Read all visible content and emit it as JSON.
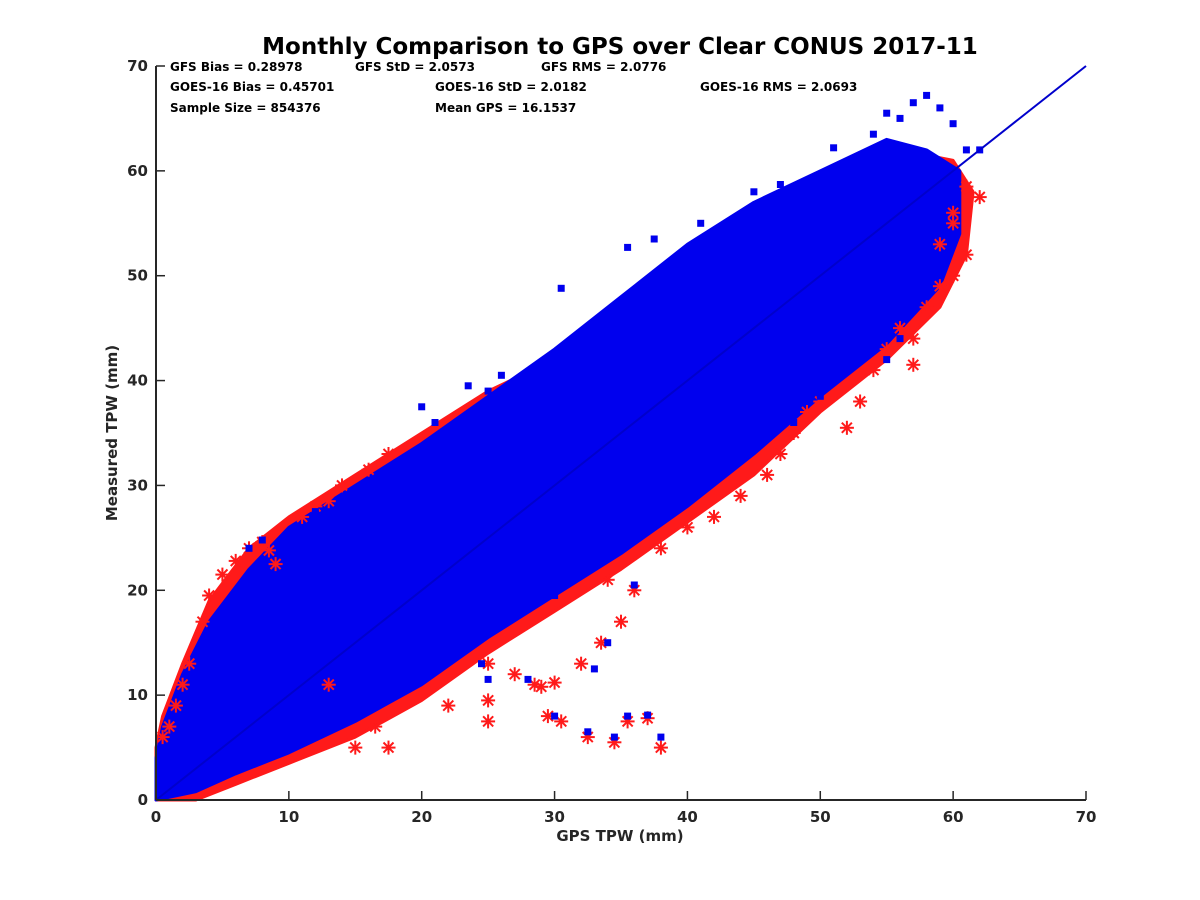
{
  "chart_data": {
    "type": "scatter",
    "title": "Monthly Comparison to GPS over Clear CONUS 2017-11",
    "xlabel": "GPS TPW (mm)",
    "ylabel": "Measured TPW (mm)",
    "xlim": [
      0,
      70
    ],
    "ylim": [
      0,
      70
    ],
    "xticks": [
      "0",
      "10",
      "20",
      "30",
      "40",
      "50",
      "60",
      "70"
    ],
    "yticks": [
      "0",
      "10",
      "20",
      "30",
      "40",
      "50",
      "60",
      "70"
    ],
    "grid": false,
    "legend": "none",
    "stats": {
      "row1": [
        "GFS Bias = 0.28978",
        "GFS StD = 2.0573",
        "GFS RMS = 2.0776"
      ],
      "row2": [
        "GOES-16 Bias = 0.45701",
        "GOES-16 StD = 2.0182",
        "GOES-16 RMS = 2.0693"
      ],
      "row3": [
        "Sample Size = 854376",
        "Mean GPS = 16.1537"
      ]
    },
    "reference_line": {
      "x": [
        0,
        70
      ],
      "y": [
        0,
        70
      ],
      "color": "#0000cc"
    },
    "series": [
      {
        "marker": "asterisk",
        "color": "#ff1a1a",
        "outliers": [
          [
            5,
            21.5
          ],
          [
            6,
            22.8
          ],
          [
            7,
            24
          ],
          [
            8,
            24.6
          ],
          [
            8.5,
            23.8
          ],
          [
            9,
            22.5
          ],
          [
            4,
            19.5
          ],
          [
            3.5,
            17
          ],
          [
            2.5,
            13
          ],
          [
            2,
            11
          ],
          [
            1.5,
            9
          ],
          [
            1,
            7
          ],
          [
            0.5,
            6
          ],
          [
            11,
            27
          ],
          [
            12,
            28
          ],
          [
            13,
            28.5
          ],
          [
            14,
            30
          ],
          [
            16,
            31.5
          ],
          [
            17.5,
            33
          ],
          [
            13,
            11
          ],
          [
            15,
            5
          ],
          [
            16.5,
            7
          ],
          [
            17.5,
            5
          ],
          [
            22,
            9
          ],
          [
            25,
            9.5
          ],
          [
            25,
            7.5
          ],
          [
            25,
            13
          ],
          [
            27,
            12
          ],
          [
            28.5,
            11
          ],
          [
            29,
            10.8
          ],
          [
            30,
            11.2
          ],
          [
            29.5,
            8
          ],
          [
            30.5,
            7.5
          ],
          [
            32.5,
            6
          ],
          [
            34.5,
            5.5
          ],
          [
            35.5,
            7.5
          ],
          [
            37,
            7.8
          ],
          [
            38,
            5
          ],
          [
            32,
            13
          ],
          [
            33.5,
            15
          ],
          [
            35,
            17
          ],
          [
            34,
            21
          ],
          [
            36,
            20
          ],
          [
            38,
            24
          ],
          [
            40,
            26
          ],
          [
            42,
            27
          ],
          [
            44,
            29
          ],
          [
            46,
            31
          ],
          [
            47,
            33
          ],
          [
            48,
            35
          ],
          [
            49,
            37
          ],
          [
            50,
            38
          ],
          [
            52,
            35.5
          ],
          [
            53,
            38
          ],
          [
            54,
            41
          ],
          [
            55,
            43
          ],
          [
            56,
            45
          ],
          [
            57,
            44
          ],
          [
            57,
            41.5
          ],
          [
            58,
            47
          ],
          [
            59,
            49
          ],
          [
            60,
            50
          ],
          [
            61,
            52
          ],
          [
            60,
            56
          ],
          [
            61,
            58.5
          ],
          [
            62,
            57.5
          ],
          [
            60,
            55
          ],
          [
            59,
            53
          ]
        ]
      },
      {
        "marker": "square",
        "color": "#0000ee",
        "outliers": [
          [
            8,
            24.8
          ],
          [
            7,
            24
          ],
          [
            12,
            27.5
          ],
          [
            20,
            37.5
          ],
          [
            21,
            36
          ],
          [
            23.5,
            39.5
          ],
          [
            25,
            39
          ],
          [
            26,
            40.5
          ],
          [
            28,
            38.5
          ],
          [
            30.5,
            48.8
          ],
          [
            33,
            42
          ],
          [
            35.5,
            52.7
          ],
          [
            37.5,
            53.5
          ],
          [
            40,
            52
          ],
          [
            41,
            55
          ],
          [
            44,
            54
          ],
          [
            45,
            58
          ],
          [
            47,
            58.7
          ],
          [
            49,
            57.5
          ],
          [
            51,
            62.2
          ],
          [
            55,
            65.5
          ],
          [
            56,
            65
          ],
          [
            57,
            66.5
          ],
          [
            58,
            67.2
          ],
          [
            59,
            66
          ],
          [
            60,
            64.5
          ],
          [
            61,
            62
          ],
          [
            62,
            62
          ],
          [
            53,
            61
          ],
          [
            54,
            63.5
          ],
          [
            24.5,
            13
          ],
          [
            28,
            11.5
          ],
          [
            30,
            8
          ],
          [
            32.5,
            6.5
          ],
          [
            34.5,
            6
          ],
          [
            35.5,
            8
          ],
          [
            37,
            8.1
          ],
          [
            38,
            6
          ],
          [
            36,
            20.5
          ],
          [
            34,
            15
          ],
          [
            33,
            12.5
          ],
          [
            30,
            19.5
          ],
          [
            55,
            42
          ],
          [
            56,
            44
          ],
          [
            50,
            38.5
          ],
          [
            48,
            36
          ],
          [
            25,
            11.5
          ]
        ]
      }
    ],
    "bands": [
      {
        "color": "#ff1a1a",
        "polygon_xy": [
          [
            0,
            0
          ],
          [
            3,
            0
          ],
          [
            6,
            1.5
          ],
          [
            10,
            3.5
          ],
          [
            15,
            6
          ],
          [
            20,
            9.5
          ],
          [
            25,
            14
          ],
          [
            30,
            18
          ],
          [
            35,
            22
          ],
          [
            40,
            26.5
          ],
          [
            45,
            31
          ],
          [
            50,
            37
          ],
          [
            55,
            42
          ],
          [
            59,
            47
          ],
          [
            61,
            52
          ],
          [
            61.5,
            58
          ],
          [
            60,
            61
          ],
          [
            56,
            62
          ],
          [
            50,
            59
          ],
          [
            45,
            56
          ],
          [
            40,
            52
          ],
          [
            35,
            47
          ],
          [
            30,
            42
          ],
          [
            25,
            39
          ],
          [
            20,
            35
          ],
          [
            15,
            31
          ],
          [
            10,
            27
          ],
          [
            7,
            24
          ],
          [
            4,
            19
          ],
          [
            2,
            13
          ],
          [
            0.5,
            8
          ],
          [
            0,
            5
          ]
        ]
      },
      {
        "color": "#0000ee",
        "polygon_xy": [
          [
            0,
            0
          ],
          [
            3,
            0.8
          ],
          [
            6,
            2.5
          ],
          [
            10,
            4.5
          ],
          [
            15,
            7.5
          ],
          [
            20,
            11
          ],
          [
            25,
            15.5
          ],
          [
            30,
            19.5
          ],
          [
            35,
            23.5
          ],
          [
            40,
            28
          ],
          [
            45,
            33
          ],
          [
            50,
            38.5
          ],
          [
            55,
            43.5
          ],
          [
            59,
            49
          ],
          [
            60.5,
            54
          ],
          [
            60.5,
            60
          ],
          [
            58,
            62
          ],
          [
            55,
            63
          ],
          [
            50,
            60
          ],
          [
            45,
            57
          ],
          [
            40,
            53
          ],
          [
            35,
            48
          ],
          [
            30,
            43
          ],
          [
            25,
            38.5
          ],
          [
            20,
            34
          ],
          [
            15,
            30
          ],
          [
            10,
            26
          ],
          [
            7,
            22
          ],
          [
            4,
            17
          ],
          [
            2,
            12
          ],
          [
            0.5,
            7
          ],
          [
            0,
            4
          ]
        ]
      }
    ]
  }
}
